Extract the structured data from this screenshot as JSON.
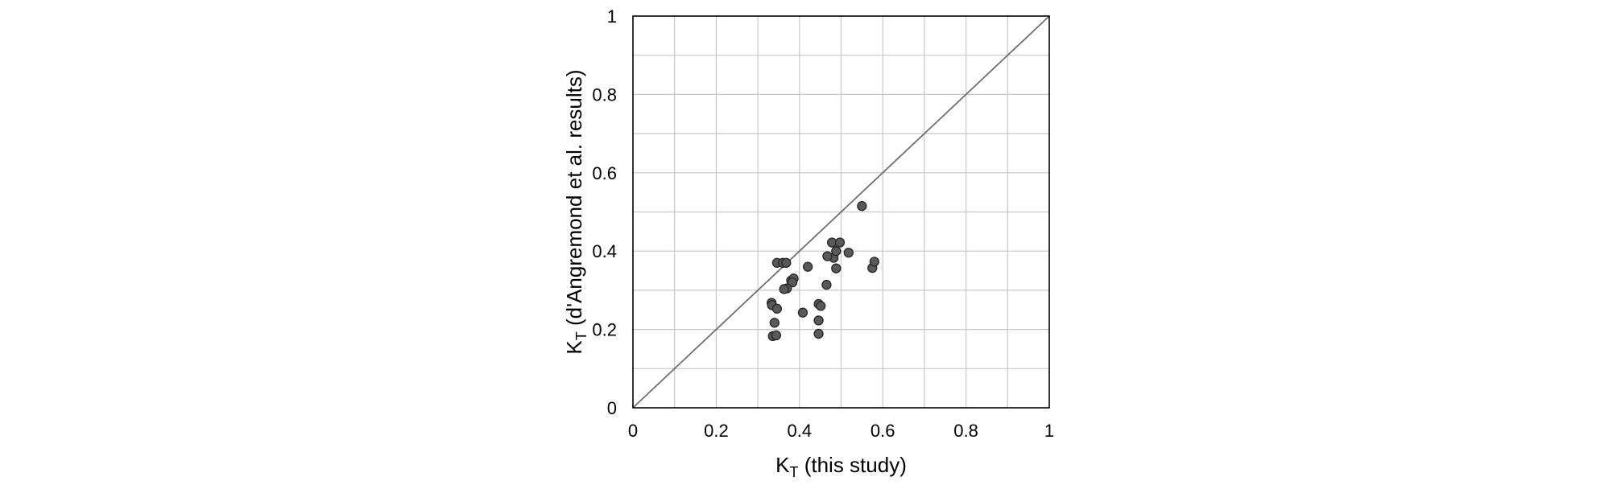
{
  "chart_data": {
    "type": "scatter",
    "title": "",
    "xlabel": {
      "main": "K",
      "sub": "T",
      "rest": " (this study)"
    },
    "ylabel": {
      "main": "K",
      "sub": "T",
      "rest": " (d'Angremond et al. results)"
    },
    "xlim": [
      0,
      1
    ],
    "ylim": [
      0,
      1
    ],
    "xticks": [
      "0",
      "0.2",
      "0.4",
      "0.6",
      "0.8",
      "1"
    ],
    "yticks": [
      "0",
      "0.2",
      "0.4",
      "0.6",
      "0.8",
      "1"
    ],
    "grid": true,
    "grid_step": 0.1,
    "reference_line": {
      "type": "y=x",
      "from": [
        0,
        0
      ],
      "to": [
        1,
        1
      ]
    },
    "colors": {
      "marker_fill": "#595959",
      "marker_stroke": "#262626",
      "grid": "#c8c8c8",
      "axis": "#000000",
      "reference_line": "#707070"
    },
    "series": [
      {
        "points": [
          {
            "x": 0.346,
            "y": 0.37
          },
          {
            "x": 0.36,
            "y": 0.37
          },
          {
            "x": 0.368,
            "y": 0.37
          },
          {
            "x": 0.38,
            "y": 0.325
          },
          {
            "x": 0.386,
            "y": 0.33
          },
          {
            "x": 0.383,
            "y": 0.32
          },
          {
            "x": 0.37,
            "y": 0.305
          },
          {
            "x": 0.363,
            "y": 0.303
          },
          {
            "x": 0.333,
            "y": 0.268
          },
          {
            "x": 0.334,
            "y": 0.262
          },
          {
            "x": 0.346,
            "y": 0.253
          },
          {
            "x": 0.34,
            "y": 0.217
          },
          {
            "x": 0.336,
            "y": 0.183
          },
          {
            "x": 0.344,
            "y": 0.185
          },
          {
            "x": 0.42,
            "y": 0.36
          },
          {
            "x": 0.408,
            "y": 0.243
          },
          {
            "x": 0.446,
            "y": 0.265
          },
          {
            "x": 0.451,
            "y": 0.26
          },
          {
            "x": 0.446,
            "y": 0.223
          },
          {
            "x": 0.446,
            "y": 0.189
          },
          {
            "x": 0.465,
            "y": 0.314
          },
          {
            "x": 0.478,
            "y": 0.422
          },
          {
            "x": 0.482,
            "y": 0.383
          },
          {
            "x": 0.467,
            "y": 0.387
          },
          {
            "x": 0.488,
            "y": 0.4
          },
          {
            "x": 0.497,
            "y": 0.422
          },
          {
            "x": 0.488,
            "y": 0.356
          },
          {
            "x": 0.518,
            "y": 0.396
          },
          {
            "x": 0.55,
            "y": 0.515
          },
          {
            "x": 0.575,
            "y": 0.357
          },
          {
            "x": 0.58,
            "y": 0.373
          }
        ]
      }
    ]
  }
}
